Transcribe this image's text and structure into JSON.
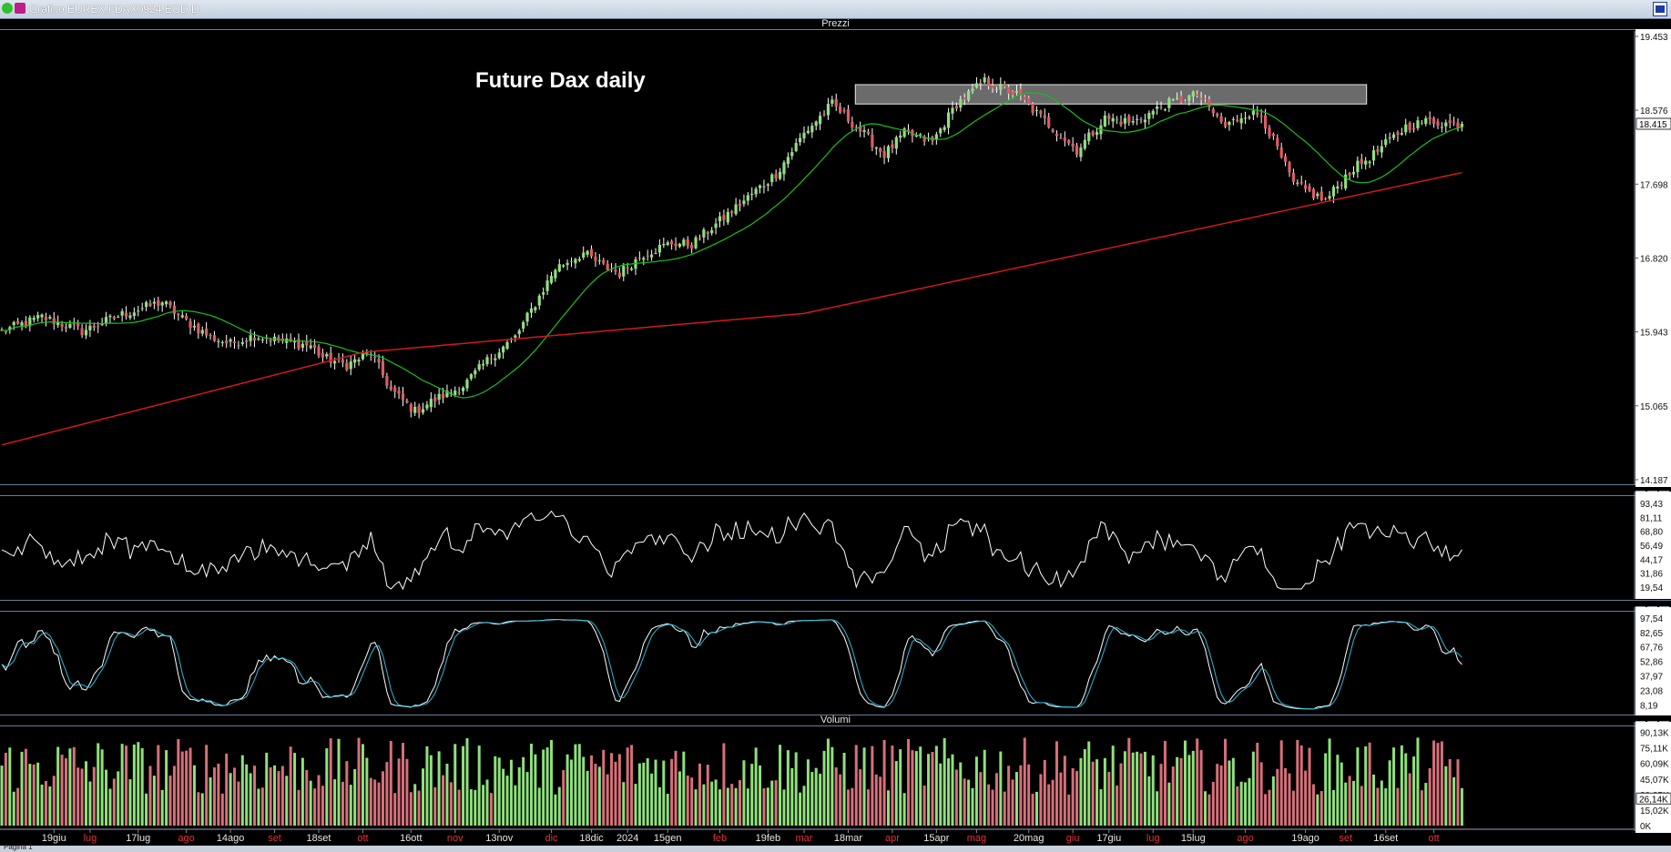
{
  "window": {
    "title": "Grafico EUREX.FDAX0924.EOD D"
  },
  "panels": {
    "price": {
      "title": "Prezzi"
    },
    "rsi": {
      "title": ""
    },
    "stoch": {
      "title": ""
    },
    "volume": {
      "title": "Volumi"
    }
  },
  "chart_data": [
    {
      "type": "candlestick",
      "title": "Future Dax daily",
      "panel": "Prezzi",
      "y_ticks": [
        "19.453",
        "18.576",
        "17.698",
        "16.820",
        "15.943",
        "15.065",
        "14.187"
      ],
      "ylim": [
        14187,
        19453
      ],
      "last_value_label": "18.415",
      "resistance_zone": [
        18650,
        18880
      ],
      "bars": 365,
      "close_path": {
        "index": [
          0,
          10,
          20,
          30,
          40,
          45,
          52,
          57,
          63,
          70,
          77,
          80,
          86,
          92,
          97,
          103,
          108,
          115,
          122,
          128,
          133,
          138,
          145,
          150,
          154,
          160,
          167,
          172,
          180,
          187,
          193,
          200,
          207,
          213,
          220,
          225,
          232,
          238,
          245,
          253,
          260,
          268,
          275,
          282,
          290,
          298,
          305,
          310,
          314,
          322,
          330,
          336,
          342,
          350,
          356,
          360,
          364
        ],
        "value": [
          15950,
          16120,
          15950,
          16150,
          16300,
          16100,
          15880,
          15800,
          15900,
          15830,
          15780,
          15640,
          15550,
          15700,
          15250,
          15000,
          15140,
          15300,
          15650,
          15880,
          16280,
          16700,
          16880,
          16720,
          16640,
          16870,
          17000,
          16980,
          17300,
          17580,
          17820,
          18300,
          18650,
          18380,
          18050,
          18300,
          18200,
          18650,
          18920,
          18760,
          18450,
          18100,
          18480,
          18430,
          18640,
          18760,
          18380,
          18540,
          18520,
          17700,
          17500,
          17850,
          18050,
          18380,
          18450,
          18420,
          18415
        ]
      },
      "series": [
        {
          "name": "",
          "color": "#1bbf1b"
        },
        {
          "name": "",
          "color": "#d11a1a"
        }
      ]
    },
    {
      "type": "line",
      "panel": "oscillator",
      "y_ticks": [
        "93,43",
        "81,11",
        "68,80",
        "56,49",
        "44,17",
        "31,86",
        "19,54"
      ],
      "ylim": [
        14,
        99
      ],
      "color": "#ffffff"
    },
    {
      "type": "line",
      "panel": "stochastic",
      "y_ticks": [
        "97,54",
        "82,65",
        "67,76",
        "52,86",
        "37,97",
        "23,08",
        "8,19"
      ],
      "ylim": [
        3,
        103
      ],
      "series": [
        {
          "name": "",
          "color": "#ffffff"
        },
        {
          "name": "",
          "color": "#29b9d6"
        }
      ]
    },
    {
      "type": "bar",
      "panel": "Volumi",
      "y_ticks": [
        "90,13K",
        "75,11K",
        "60,09K",
        "45,07K",
        "30,05K",
        "15,02K",
        "0K"
      ],
      "last_value_label": "26,14K",
      "ylim": [
        0,
        95000
      ],
      "colors": {
        "up": "#8fe07c",
        "down": "#d6707a"
      }
    }
  ],
  "x_axis": {
    "labels": [
      "19giu",
      "lug",
      "17lug",
      "ago",
      "14ago",
      "set",
      "18set",
      "ott",
      "16ott",
      "nov",
      "13nov",
      "dic",
      "18dic",
      "2024",
      "15gen",
      "feb",
      "19feb",
      "mar",
      "18mar",
      "apr",
      "15apr",
      "mag",
      "20mag",
      "giu",
      "17giu",
      "lug",
      "15lug",
      "ago",
      "19ago",
      "set",
      "16set",
      "ott"
    ],
    "red_labels": [
      "lug",
      "ago",
      "set",
      "ott",
      "nov",
      "dic",
      "feb",
      "mar",
      "apr",
      "mag",
      "giu",
      "lug",
      "ago",
      "set",
      "ott"
    ],
    "bar_index": [
      13,
      22,
      34,
      46,
      57,
      68,
      79,
      90,
      102,
      113,
      124,
      137,
      147,
      156,
      166,
      179,
      191,
      200,
      211,
      222,
      233,
      243,
      256,
      267,
      276,
      287,
      297,
      310,
      325,
      335,
      345,
      357
    ]
  },
  "footer": {
    "label": "Pagina 1"
  }
}
